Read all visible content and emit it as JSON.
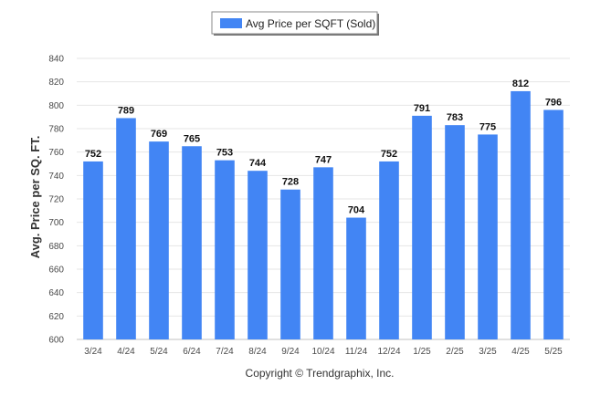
{
  "legend": {
    "label": "Avg Price per SQFT (Sold)"
  },
  "footer": {
    "copyright": "Copyright © Trendgraphix, Inc."
  },
  "colors": {
    "bar": "#4285f4",
    "grid": "#e6e6e6",
    "axis": "#c0c0c0"
  },
  "chart_data": {
    "type": "bar",
    "categories": [
      "3/24",
      "4/24",
      "5/24",
      "6/24",
      "7/24",
      "8/24",
      "9/24",
      "10/24",
      "11/24",
      "12/24",
      "1/25",
      "2/25",
      "3/25",
      "4/25",
      "5/25"
    ],
    "series": [
      {
        "name": "Avg Price per SQFT (Sold)",
        "values": [
          752,
          789,
          769,
          765,
          753,
          744,
          728,
          747,
          704,
          752,
          791,
          783,
          775,
          812,
          796
        ]
      }
    ],
    "ylabel": "Avg. Price per SQ. FT.",
    "ylim": [
      600,
      840
    ],
    "yticks": [
      600,
      620,
      640,
      660,
      680,
      700,
      720,
      740,
      760,
      780,
      800,
      820,
      840
    ],
    "grid": true,
    "legend_position": "top-center",
    "data_labels": true
  }
}
